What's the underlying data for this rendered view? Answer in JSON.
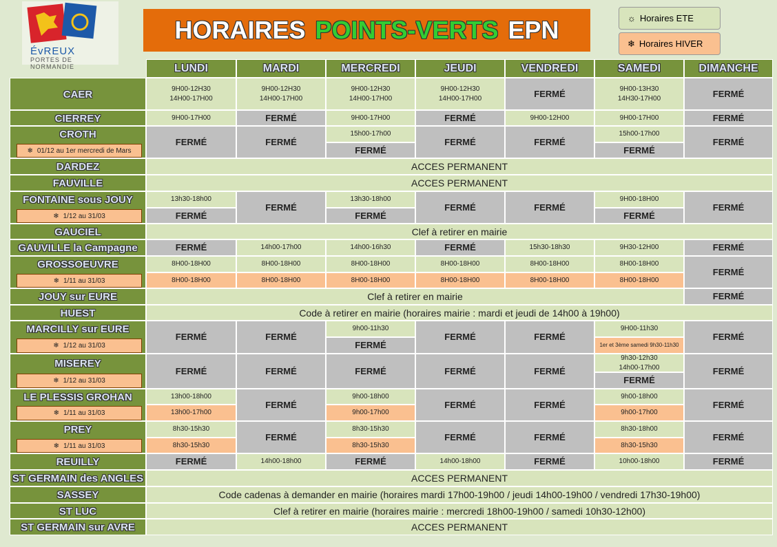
{
  "header": {
    "logo_line1": "ÉvREUX",
    "logo_line2": "PORTES DE NORMANDIE",
    "title": [
      "HORAIRES",
      "POINTS-VERTS",
      "EPN"
    ],
    "legend": [
      "Horaires ETE",
      "Horaires HIVER"
    ]
  },
  "days": [
    "LUNDI",
    "MARDI",
    "MERCREDI",
    "JEUDI",
    "VENDREDI",
    "SAMEDI",
    "DIMANCHE"
  ],
  "rows": [
    {
      "name": "CAER",
      "cells": [
        "9H00-12H30\n14H00-17H00",
        "9H00-12H30\n14H00-17H00",
        "9H00-12H30\n14H00-17H00",
        "9H00-12H30\n14H00-17H00",
        "FERMÉ",
        "9H00-13H30\n14H30-17H00",
        "FERMÉ"
      ]
    },
    {
      "name": "CIERREY",
      "cells": [
        "9H00-17H00",
        "FERMÉ",
        "9H00-17H00",
        "FERMÉ",
        "9H00-12H00",
        "9H00-17H00",
        "FERMÉ"
      ]
    },
    {
      "name": "CROTH",
      "note": "01/12 au 1er mercredi de Mars",
      "cells": [
        "FERMÉ",
        "FERMÉ",
        "15h00-17h00",
        "FERMÉ",
        "FERMÉ",
        "FERMÉ",
        "15h00-17h00",
        "FERMÉ",
        "FERMÉ"
      ]
    },
    {
      "name": "DARDEZ",
      "cells": [
        "ACCES PERMANENT"
      ]
    },
    {
      "name": "FAUVILLE",
      "cells": [
        "ACCES PERMANENT"
      ]
    },
    {
      "name": "FONTAINE sous JOUY",
      "note": "1/12 au 31/03",
      "cells": [
        "13h30-18h00",
        "FERMÉ",
        "FERMÉ",
        "13h30-18h00",
        "FERMÉ",
        "FERMÉ",
        "FERMÉ",
        "9H00-18H00",
        "FERMÉ",
        "FERMÉ"
      ]
    },
    {
      "name": "GAUCIEL",
      "cells": [
        "Clef à retirer en mairie"
      ]
    },
    {
      "name": "GAUVILLE la Campagne",
      "cells": [
        "FERMÉ",
        "14h00-17h00",
        "14h00-16h30",
        "FERMÉ",
        "15h30-18h30",
        "9H30-12H00",
        "FERMÉ"
      ]
    },
    {
      "name": "GROSSOEUVRE",
      "note": "1/11 au 31/03",
      "cells": [
        "8H00-18H00",
        "8H00-18H00",
        "8H00-18H00",
        "8H00-18H00",
        "8H00-18H00",
        "8H00-18H00",
        "8H00-18H00",
        "8H00-18H00",
        "8H00-18H00",
        "8H00-18H00",
        "8H00-18H00",
        "8H00-18H00",
        "FERMÉ"
      ]
    },
    {
      "name": "JOUY sur EURE",
      "cells": [
        "Clef à retirer en mairie",
        "FERMÉ"
      ]
    },
    {
      "name": "HUEST",
      "cells": [
        "Code à retirer en mairie (horaires mairie : mardi et jeudi de 14h00 à 19h00)"
      ]
    },
    {
      "name": "MARCILLY sur EURE",
      "note": "1/12 au 31/03",
      "cells": [
        "FERMÉ",
        "FERMÉ",
        "9h00-11h30",
        "FERMÉ",
        "FERMÉ",
        "FERMÉ",
        "9H00-11h30",
        "1er et 3ème samedi 9h30-11h30",
        "FERMÉ"
      ]
    },
    {
      "name": "MISEREY",
      "note": "1/12 au 31/03",
      "cells": [
        "FERMÉ",
        "FERMÉ",
        "FERMÉ",
        "FERMÉ",
        "FERMÉ",
        "9h30-12h30\n14h00-17h00",
        "FERMÉ",
        "FERMÉ"
      ]
    },
    {
      "name": "LE PLESSIS GROHAN",
      "note": "1/11 au 31/03",
      "cells": [
        "13h00-18h00",
        "13h00-17h00",
        "FERMÉ",
        "9h00-18h00",
        "9h00-17h00",
        "FERMÉ",
        "FERMÉ",
        "9h00-18h00",
        "9h00-17h00",
        "FERMÉ"
      ]
    },
    {
      "name": "PREY",
      "note": "1/11 au 31/03",
      "cells": [
        "8h30-15h30",
        "8h30-15h30",
        "FERMÉ",
        "8h30-15h30",
        "8h30-15h30",
        "FERMÉ",
        "FERMÉ",
        "8h30-18h00",
        "8h30-15h30",
        "FERMÉ"
      ]
    },
    {
      "name": "REUILLY",
      "cells": [
        "FERMÉ",
        "14h00-18h00",
        "FERMÉ",
        "14h00-18h00",
        "FERMÉ",
        "10h00-18h00",
        "FERMÉ"
      ]
    },
    {
      "name": "ST GERMAIN des ANGLES",
      "cells": [
        "ACCES PERMANENT"
      ]
    },
    {
      "name": "SASSEY",
      "cells": [
        "Code cadenas à demander en mairie (horaires mardi 17h00-19h00 / jeudi 14h00-19h00 / vendredi 17h30-19h00)"
      ]
    },
    {
      "name": "ST LUC",
      "cells": [
        "Clef à retirer en mairie (horaires mairie : mercredi 18h00-19h00 / samedi 10h30-12h00)"
      ]
    },
    {
      "name": "ST GERMAIN sur AVRE",
      "cells": [
        "ACCES PERMANENT"
      ]
    }
  ]
}
